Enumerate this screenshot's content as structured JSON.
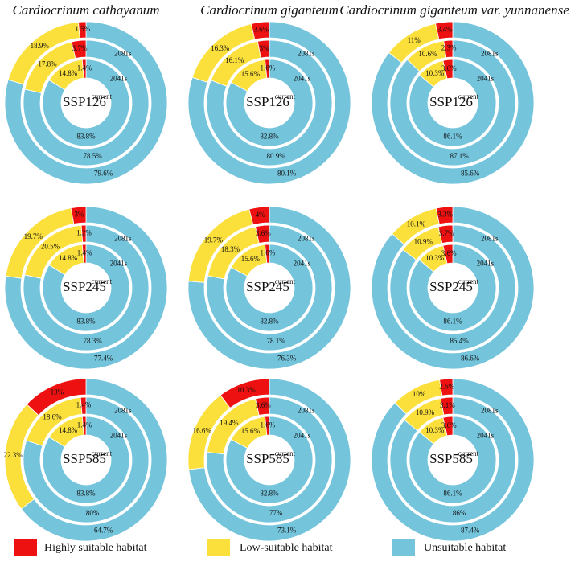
{
  "columns": [
    "Cardiocrinum cathayanum",
    "Cardiocrinum giganteum",
    "Cardiocrinum giganteum var. yunnanense"
  ],
  "legend": [
    {
      "name": "Highly suitable habitat",
      "color": "#ee1111"
    },
    {
      "name": "Low-suitable habitat",
      "color": "#fbe03c"
    },
    {
      "name": "Unsuitable habitat",
      "color": "#74c4dc"
    }
  ],
  "chart_data": [
    {
      "type": "donut",
      "title": "SSP126",
      "categories": [
        "current",
        "2041s",
        "2081s"
      ],
      "series": [
        {
          "values": [
            1.4,
            3.7,
            1.5
          ],
          "value_labels": [
            "1.4%",
            "3.7%",
            "1.5%"
          ]
        },
        {
          "values": [
            14.8,
            17.8,
            18.9
          ],
          "value_labels": [
            "14.8%",
            "17.8%",
            "18.9%"
          ]
        },
        {
          "values": [
            83.8,
            78.5,
            79.6
          ],
          "value_labels": [
            "83.8%",
            "78.5%",
            "79.6%"
          ]
        }
      ]
    },
    {
      "type": "donut",
      "title": "SSP126",
      "categories": [
        "current",
        "2041s",
        "2081s"
      ],
      "series": [
        {
          "values": [
            1.6,
            3,
            3.6
          ],
          "value_labels": [
            "1.6%",
            "3%",
            "3.6%"
          ]
        },
        {
          "values": [
            15.6,
            16.1,
            16.3
          ],
          "value_labels": [
            "15.6%",
            "16.1%",
            "16.3%"
          ]
        },
        {
          "values": [
            82.8,
            80.9,
            80.1
          ],
          "value_labels": [
            "82.8%",
            "80.9%",
            "80.1%"
          ]
        }
      ]
    },
    {
      "type": "donut",
      "title": "SSP126",
      "categories": [
        "current",
        "2041s",
        "2081s"
      ],
      "series": [
        {
          "values": [
            3.6,
            2.3,
            3.4
          ],
          "value_labels": [
            "3.6%",
            "2.3%",
            "3.4%"
          ]
        },
        {
          "values": [
            10.3,
            10.6,
            11
          ],
          "value_labels": [
            "10.3%",
            "10.6%",
            "11%"
          ]
        },
        {
          "values": [
            86.1,
            87.1,
            85.6
          ],
          "value_labels": [
            "86.1%",
            "87.1%",
            "85.6%"
          ]
        }
      ]
    },
    {
      "type": "donut",
      "title": "SSP245",
      "categories": [
        "current",
        "2041s",
        "2081s"
      ],
      "series": [
        {
          "values": [
            1.4,
            1.2,
            3
          ],
          "value_labels": [
            "1.4%",
            "1.2%",
            "3%"
          ]
        },
        {
          "values": [
            14.8,
            20.5,
            19.7
          ],
          "value_labels": [
            "14.8%",
            "20.5%",
            "19.7%"
          ]
        },
        {
          "values": [
            83.8,
            78.3,
            77.4
          ],
          "value_labels": [
            "83.8%",
            "78.3%",
            "77.4%"
          ]
        }
      ]
    },
    {
      "type": "donut",
      "title": "SSP245",
      "categories": [
        "current",
        "2041s",
        "2081s"
      ],
      "series": [
        {
          "values": [
            1.6,
            3.6,
            4
          ],
          "value_labels": [
            "1.6%",
            "3.6%",
            "4%"
          ]
        },
        {
          "values": [
            15.6,
            18.3,
            19.7
          ],
          "value_labels": [
            "15.6%",
            "18.3%",
            "19.7%"
          ]
        },
        {
          "values": [
            82.8,
            78.1,
            76.3
          ],
          "value_labels": [
            "82.8%",
            "78.1%",
            "76.3%"
          ]
        }
      ]
    },
    {
      "type": "donut",
      "title": "SSP245",
      "categories": [
        "current",
        "2041s",
        "2081s"
      ],
      "series": [
        {
          "values": [
            3.6,
            3.7,
            3.3
          ],
          "value_labels": [
            "3.6%",
            "3.7%",
            "3.3%"
          ]
        },
        {
          "values": [
            10.3,
            10.9,
            10.1
          ],
          "value_labels": [
            "10.3%",
            "10.9%",
            "10.1%"
          ]
        },
        {
          "values": [
            86.1,
            85.4,
            86.6
          ],
          "value_labels": [
            "86.1%",
            "85.4%",
            "86.6%"
          ]
        }
      ]
    },
    {
      "type": "donut",
      "title": "SSP585",
      "categories": [
        "current",
        "2041s",
        "2081s"
      ],
      "series": [
        {
          "values": [
            1.4,
            1.4,
            13
          ],
          "value_labels": [
            "1.4%",
            "1.4%",
            "13%"
          ]
        },
        {
          "values": [
            14.8,
            18.6,
            22.3
          ],
          "value_labels": [
            "14.8%",
            "18.6%",
            "22.3%"
          ]
        },
        {
          "values": [
            83.8,
            80,
            64.7
          ],
          "value_labels": [
            "83.8%",
            "80%",
            "64.7%"
          ]
        }
      ]
    },
    {
      "type": "donut",
      "title": "SSP585",
      "categories": [
        "current",
        "2041s",
        "2081s"
      ],
      "series": [
        {
          "values": [
            1.6,
            3.6,
            10.3
          ],
          "value_labels": [
            "1.6%",
            "3.6%",
            "10.3%"
          ]
        },
        {
          "values": [
            15.6,
            19.4,
            16.6
          ],
          "value_labels": [
            "15.6%",
            "19.4%",
            "16.6%"
          ]
        },
        {
          "values": [
            82.8,
            77,
            73.1
          ],
          "value_labels": [
            "82.8%",
            "77%",
            "73.1%"
          ]
        }
      ]
    },
    {
      "type": "donut",
      "title": "SSP585",
      "categories": [
        "current",
        "2041s",
        "2081s"
      ],
      "series": [
        {
          "values": [
            3.6,
            3.1,
            2.6
          ],
          "value_labels": [
            "3.6%",
            "3.1%",
            "2.6%"
          ]
        },
        {
          "values": [
            10.3,
            10.9,
            10
          ],
          "value_labels": [
            "10.3%",
            "10.9%",
            "10%"
          ]
        },
        {
          "values": [
            86.1,
            86,
            87.4
          ],
          "value_labels": [
            "86.1%",
            "86%",
            "87.4%"
          ]
        }
      ]
    }
  ]
}
